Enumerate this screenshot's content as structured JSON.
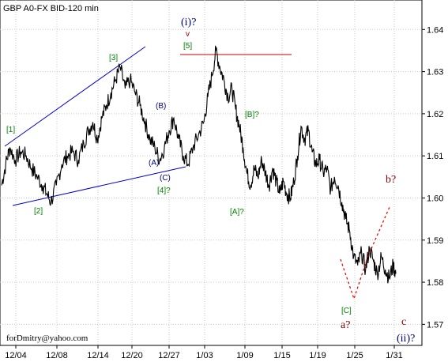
{
  "chart_data": {
    "type": "line",
    "title": "GBP A0-FX BID-120 min",
    "credit": "forDmitry@yahoo.com",
    "x_ticks": [
      "12/04",
      "12/08",
      "12/14",
      "12/20",
      "12/27",
      "1/03",
      "1/09",
      "1/15",
      "1/19",
      "1/25",
      "1/31"
    ],
    "y_ticks": [
      "1.64",
      "1.63",
      "1.62",
      "1.61",
      "1.60",
      "1.59",
      "1.58",
      "1.57"
    ],
    "ylim": [
      1.565,
      1.647
    ],
    "grid": "dotted",
    "series": [
      {
        "values": [
          [
            0,
            1.603
          ],
          [
            0.3,
            1.608
          ],
          [
            0.6,
            1.612
          ],
          [
            1.0,
            1.609
          ],
          [
            1.4,
            1.611
          ],
          [
            1.8,
            1.61
          ],
          [
            2.2,
            1.607
          ],
          [
            2.6,
            1.605
          ],
          [
            3.0,
            1.603
          ],
          [
            3.3,
            1.601
          ],
          [
            3.6,
            1.599
          ],
          [
            4.0,
            1.603
          ],
          [
            4.4,
            1.608
          ],
          [
            4.8,
            1.61
          ],
          [
            5.2,
            1.611
          ],
          [
            5.6,
            1.609
          ],
          [
            6.0,
            1.613
          ],
          [
            6.4,
            1.616
          ],
          [
            6.8,
            1.618
          ],
          [
            7.2,
            1.614
          ],
          [
            7.6,
            1.619
          ],
          [
            8.0,
            1.622
          ],
          [
            8.4,
            1.625
          ],
          [
            8.8,
            1.628
          ],
          [
            9.2,
            1.631
          ],
          [
            9.6,
            1.626
          ],
          [
            10.0,
            1.628
          ],
          [
            10.4,
            1.625
          ],
          [
            10.8,
            1.622
          ],
          [
            11.2,
            1.618
          ],
          [
            11.6,
            1.614
          ],
          [
            12.0,
            1.612
          ],
          [
            12.4,
            1.609
          ],
          [
            12.8,
            1.612
          ],
          [
            13.2,
            1.616
          ],
          [
            13.6,
            1.619
          ],
          [
            14.0,
            1.614
          ],
          [
            14.4,
            1.61
          ],
          [
            14.8,
            1.608
          ],
          [
            15.2,
            1.612
          ],
          [
            15.6,
            1.615
          ],
          [
            16.0,
            1.618
          ],
          [
            16.3,
            1.624
          ],
          [
            16.6,
            1.629
          ],
          [
            16.9,
            1.635
          ],
          [
            17.2,
            1.631
          ],
          [
            17.5,
            1.628
          ],
          [
            17.8,
            1.624
          ],
          [
            18.1,
            1.626
          ],
          [
            18.4,
            1.621
          ],
          [
            18.7,
            1.617
          ],
          [
            19.0,
            1.612
          ],
          [
            19.3,
            1.606
          ],
          [
            19.6,
            1.603
          ],
          [
            19.9,
            1.607
          ],
          [
            20.2,
            1.605
          ],
          [
            20.5,
            1.609
          ],
          [
            20.8,
            1.606
          ],
          [
            21.1,
            1.603
          ],
          [
            21.4,
            1.607
          ],
          [
            21.7,
            1.604
          ],
          [
            22.0,
            1.601
          ],
          [
            22.3,
            1.604
          ],
          [
            22.6,
            1.601
          ],
          [
            22.9,
            1.6
          ],
          [
            23.2,
            1.604
          ],
          [
            23.5,
            1.61
          ],
          [
            23.8,
            1.617
          ],
          [
            24.1,
            1.614
          ],
          [
            24.4,
            1.616
          ],
          [
            24.7,
            1.611
          ],
          [
            25.0,
            1.608
          ],
          [
            25.3,
            1.609
          ],
          [
            25.6,
            1.606
          ],
          [
            25.9,
            1.607
          ],
          [
            26.2,
            1.602
          ],
          [
            26.5,
            1.605
          ],
          [
            26.8,
            1.603
          ],
          [
            27.1,
            1.599
          ],
          [
            27.4,
            1.595
          ],
          [
            27.7,
            1.592
          ],
          [
            28.0,
            1.586
          ],
          [
            28.3,
            1.584
          ],
          [
            28.6,
            1.587
          ],
          [
            28.9,
            1.583
          ],
          [
            29.2,
            1.588
          ],
          [
            29.5,
            1.585
          ],
          [
            29.8,
            1.582
          ],
          [
            30.1,
            1.586
          ],
          [
            30.4,
            1.583
          ],
          [
            30.7,
            1.581
          ],
          [
            31.0,
            1.584
          ],
          [
            31.2,
            1.582
          ]
        ]
      }
    ]
  },
  "annotations": {
    "w1": "[1]",
    "w2": "[2]",
    "w3": "[3]",
    "w4": "[4]?",
    "w5": "[5]",
    "wA_paren": "(A)",
    "wB_paren": "(B)",
    "wC_paren": "(C)",
    "wA_bracket": "[A]?",
    "wB_bracket": "[B]?",
    "wC_bracket": "[C]",
    "wave_i": "(i)?",
    "wave_i_mark": "v",
    "wave_a": "a?",
    "wave_b": "b?",
    "wave_c": "c",
    "wave_ii": "(ii)?"
  },
  "colors": {
    "price": "#000000",
    "channel": "#0000cc",
    "resistance": "#cc0000",
    "projection": "#e00000",
    "green_labels": "#008000",
    "navy_labels": "#000080",
    "maroon_labels": "#8b0000",
    "grid": "#c8c8c8"
  }
}
